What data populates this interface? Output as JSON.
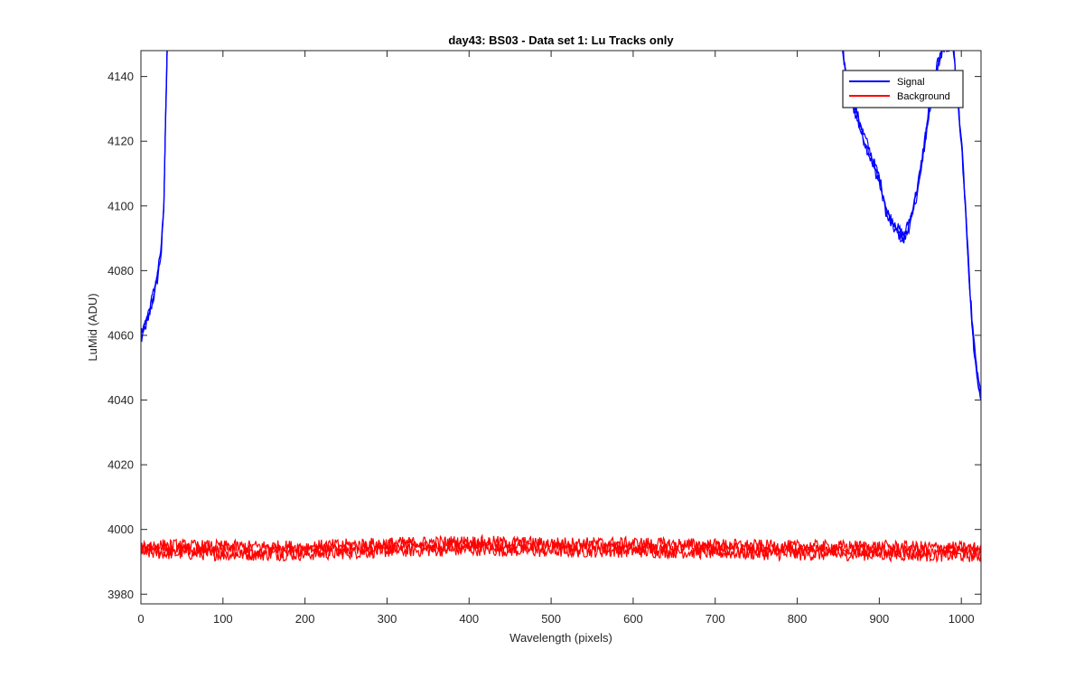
{
  "chart_data": {
    "type": "line",
    "title": "day43: BS03 - Data set 1: Lu Tracks only",
    "xlabel": "Wavelength (pixels)",
    "ylabel": "LuMid (ADU)",
    "xlim": [
      0,
      1024
    ],
    "ylim": [
      3977,
      4148
    ],
    "xticks": [
      0,
      100,
      200,
      300,
      400,
      500,
      600,
      700,
      800,
      900,
      1000
    ],
    "yticks": [
      3980,
      4000,
      4020,
      4040,
      4060,
      4080,
      4100,
      4120,
      4140
    ],
    "grid": false,
    "legend_position": "top-right",
    "series": [
      {
        "name": "Signal",
        "color": "#0000ff",
        "noise_amplitude": 1.6,
        "points": [
          [
            0,
            4059
          ],
          [
            5,
            4063
          ],
          [
            10,
            4067
          ],
          [
            15,
            4072
          ],
          [
            20,
            4078
          ],
          [
            25,
            4087
          ],
          [
            28,
            4100
          ],
          [
            30,
            4125
          ],
          [
            32,
            4150
          ],
          [
            855,
            4150
          ],
          [
            860,
            4138
          ],
          [
            870,
            4130
          ],
          [
            880,
            4122
          ],
          [
            890,
            4115
          ],
          [
            900,
            4108
          ],
          [
            910,
            4097
          ],
          [
            920,
            4093
          ],
          [
            930,
            4090
          ],
          [
            940,
            4097
          ],
          [
            950,
            4110
          ],
          [
            960,
            4128
          ],
          [
            970,
            4142
          ],
          [
            978,
            4150
          ],
          [
            990,
            4150
          ],
          [
            1000,
            4120
          ],
          [
            1005,
            4100
          ],
          [
            1010,
            4075
          ],
          [
            1015,
            4058
          ],
          [
            1020,
            4046
          ],
          [
            1024,
            4041
          ]
        ]
      },
      {
        "name": "Background",
        "color": "#ff0000",
        "noise_amplitude": 2.0,
        "points": [
          [
            0,
            3994
          ],
          [
            100,
            3993.5
          ],
          [
            200,
            3993.5
          ],
          [
            300,
            3994.5
          ],
          [
            400,
            3995
          ],
          [
            500,
            3994.5
          ],
          [
            600,
            3994.5
          ],
          [
            700,
            3994
          ],
          [
            800,
            3993.5
          ],
          [
            900,
            3993.5
          ],
          [
            1024,
            3993
          ]
        ]
      }
    ]
  }
}
